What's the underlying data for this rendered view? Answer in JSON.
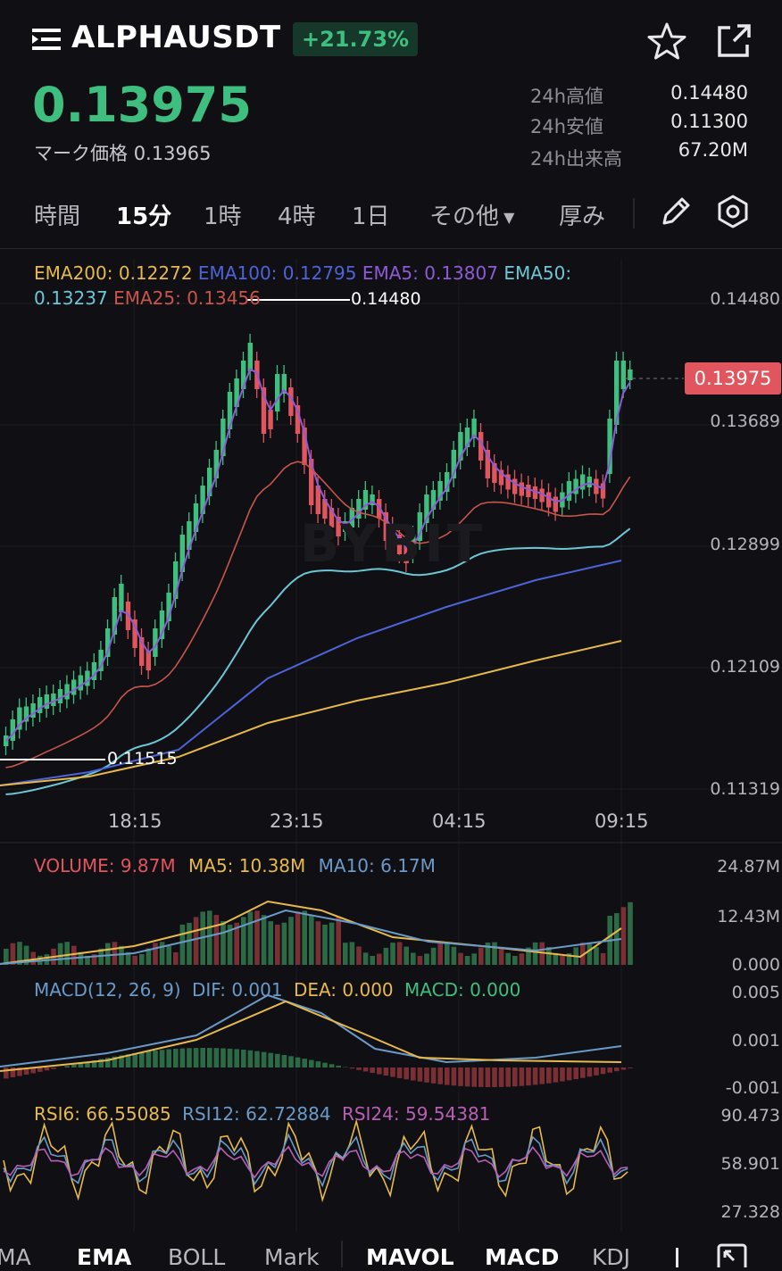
{
  "header": {
    "symbol": "ALPHAUSDT",
    "change": "+21.73%",
    "price": "0.13975",
    "mark_label": "マーク価格",
    "mark_value": "0.13965",
    "stats": [
      {
        "label": "24h高値",
        "value": "0.14480"
      },
      {
        "label": "24h安値",
        "value": "0.11300"
      },
      {
        "label": "24h出来高",
        "value": "67.20M"
      }
    ]
  },
  "timeframes": {
    "time": "時間",
    "m15": "15分",
    "h1": "1時",
    "h4": "4時",
    "d1": "1日",
    "other": "その他",
    "depth": "厚み"
  },
  "ema_legend": {
    "ema200": "EMA200: 0.12272",
    "ema100": "EMA100: 0.12795",
    "ema5": "EMA5: 0.13807",
    "ema50_a": "EMA50:",
    "ema50_b": "0.13237",
    "ema25": "EMA25: 0.13456"
  },
  "price_axis": [
    "0.14480",
    "0.13689",
    "0.12899",
    "0.12109",
    "0.11319"
  ],
  "current_price_tag": "0.13975",
  "high_marker": "0.14480",
  "low_marker": "0.11515",
  "time_axis": [
    "18:15",
    "23:15",
    "04:15",
    "09:15"
  ],
  "watermark": "BYBIT",
  "volume_legend": {
    "volume": "VOLUME: 9.87M",
    "ma5": "MA5: 10.38M",
    "ma10": "MA10: 6.17M"
  },
  "volume_axis": [
    "24.87M",
    "12.43M",
    "0.000"
  ],
  "macd_legend": {
    "title": "MACD(12, 26, 9)",
    "dif": "DIF: 0.001",
    "dea": "DEA: 0.000",
    "macd": "MACD: 0.000"
  },
  "macd_axis": [
    "0.005",
    "0.001",
    "-0.001"
  ],
  "rsi_legend": {
    "rsi6": "RSI6: 66.55085",
    "rsi12": "RSI12: 62.72884",
    "rsi24": "RSI24: 59.54381"
  },
  "rsi_axis": [
    "90.473",
    "58.901",
    "27.328"
  ],
  "bottom_tabs": [
    "MA",
    "EMA",
    "BOLL",
    "Mark",
    "MAVOL",
    "MACD",
    "KDJ"
  ],
  "colors": {
    "up": "#3fbf7f",
    "down": "#e0555e",
    "ema200": "#e6b94a",
    "ema100": "#4d63d8",
    "ema5": "#8e5ad6",
    "ema50": "#6cc6d6",
    "ema25": "#c8554b"
  },
  "icons": [
    "menu-icon",
    "star-icon",
    "share-icon",
    "pencil-icon",
    "settings-icon",
    "fullscreen-icon"
  ]
}
